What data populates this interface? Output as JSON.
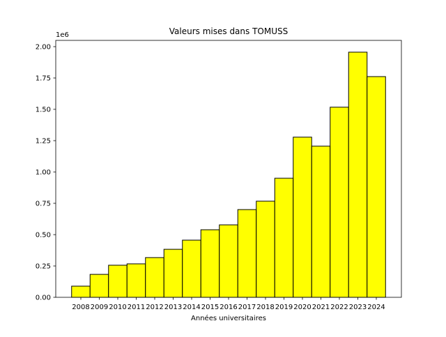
{
  "chart_data": {
    "type": "bar",
    "title": "Valeurs mises dans TOMUSS",
    "xlabel": "Années universitaires",
    "ylabel": "",
    "y_offset_label": "1e6",
    "categories": [
      "2008",
      "2009",
      "2010",
      "2011",
      "2012",
      "2013",
      "2014",
      "2015",
      "2016",
      "2017",
      "2018",
      "2019",
      "2020",
      "2021",
      "2022",
      "2023",
      "2024"
    ],
    "values": [
      89000,
      183000,
      256000,
      267000,
      317000,
      383000,
      456000,
      539000,
      578000,
      700000,
      767000,
      950000,
      1278000,
      1206000,
      1517000,
      1956000,
      1761000
    ],
    "ylim": [
      0,
      2050000
    ],
    "yticks": [
      0,
      250000,
      500000,
      750000,
      1000000,
      1250000,
      1500000,
      1750000,
      2000000
    ],
    "ytick_labels": [
      "0.00",
      "0.25",
      "0.50",
      "0.75",
      "1.00",
      "1.25",
      "1.50",
      "1.75",
      "2.00"
    ],
    "bar_color": "#ffff00",
    "edge_color": "#000000",
    "grid": false
  }
}
